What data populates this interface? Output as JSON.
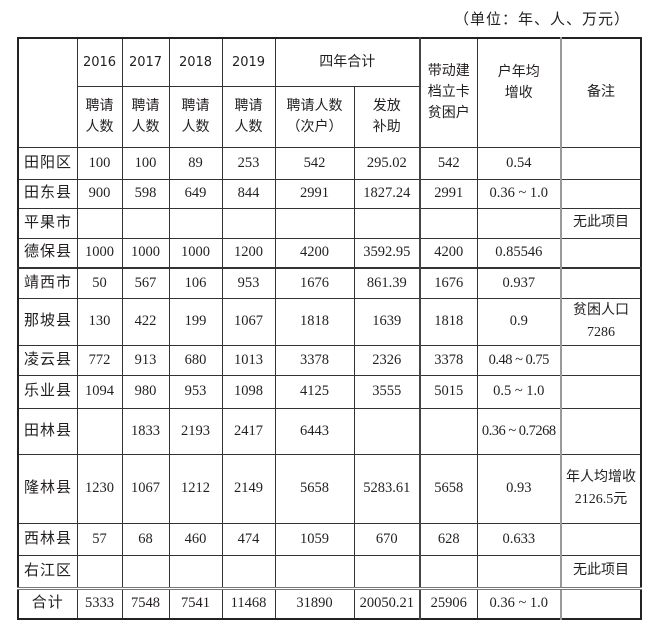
{
  "unit_note": "（单位：年、人、万元）",
  "header": {
    "years": [
      "2016",
      "2017",
      "2018",
      "2019"
    ],
    "four_year_total": "四年合计",
    "hired": "聘请人数",
    "hired_total": "聘请人数（次户）",
    "subsidy": "发放补助",
    "poor_households": "带动建档立卡贫困户",
    "avg_income": "户年均增收",
    "remarks": "备注"
  },
  "rows": [
    {
      "name": "田阳区",
      "y2016": "100",
      "y2017": "100",
      "y2018": "89",
      "y2019": "253",
      "total": "542",
      "subsidy": "295.02",
      "poor": "542",
      "income": "0.54",
      "note": ""
    },
    {
      "name": "田东县",
      "y2016": "900",
      "y2017": "598",
      "y2018": "649",
      "y2019": "844",
      "total": "2991",
      "subsidy": "1827.24",
      "poor": "2991",
      "income": "0.36 ~ 1.0",
      "note": ""
    },
    {
      "name": "平果市",
      "y2016": "",
      "y2017": "",
      "y2018": "",
      "y2019": "",
      "total": "",
      "subsidy": "",
      "poor": "",
      "income": "",
      "note": "无此项目"
    },
    {
      "name": "德保县",
      "y2016": "1000",
      "y2017": "1000",
      "y2018": "1000",
      "y2019": "1200",
      "total": "4200",
      "subsidy": "3592.95",
      "poor": "4200",
      "income": "0.85546",
      "note": ""
    },
    {
      "name": "靖西市",
      "y2016": "50",
      "y2017": "567",
      "y2018": "106",
      "y2019": "953",
      "total": "1676",
      "subsidy": "861.39",
      "poor": "1676",
      "income": "0.937",
      "note": ""
    },
    {
      "name": "那坡县",
      "y2016": "130",
      "y2017": "422",
      "y2018": "199",
      "y2019": "1067",
      "total": "1818",
      "subsidy": "1639",
      "poor": "1818",
      "income": "0.9",
      "note": "贫困人口7286"
    },
    {
      "name": "凌云县",
      "y2016": "772",
      "y2017": "913",
      "y2018": "680",
      "y2019": "1013",
      "total": "3378",
      "subsidy": "2326",
      "poor": "3378",
      "income": "0.48 ~ 0.75",
      "note": ""
    },
    {
      "name": "乐业县",
      "y2016": "1094",
      "y2017": "980",
      "y2018": "953",
      "y2019": "1098",
      "total": "4125",
      "subsidy": "3555",
      "poor": "5015",
      "income": "0.5 ~ 1.0",
      "note": ""
    },
    {
      "name": "田林县",
      "y2016": "",
      "y2017": "1833",
      "y2018": "2193",
      "y2019": "2417",
      "total": "6443",
      "subsidy": "",
      "poor": "",
      "income": "0.36 ~ 0.7268",
      "note": ""
    },
    {
      "name": "隆林县",
      "y2016": "1230",
      "y2017": "1067",
      "y2018": "1212",
      "y2019": "2149",
      "total": "5658",
      "subsidy": "5283.61",
      "poor": "5658",
      "income": "0.93",
      "note": "年人均增收2126.5元"
    },
    {
      "name": "西林县",
      "y2016": "57",
      "y2017": "68",
      "y2018": "460",
      "y2019": "474",
      "total": "1059",
      "subsidy": "670",
      "poor": "628",
      "income": "0.633",
      "note": ""
    },
    {
      "name": "右江区",
      "y2016": "",
      "y2017": "",
      "y2018": "",
      "y2019": "",
      "total": "",
      "subsidy": "",
      "poor": "",
      "income": "",
      "note": "无此项目"
    },
    {
      "name": "合计",
      "y2016": "5333",
      "y2017": "7548",
      "y2018": "7541",
      "y2019": "11468",
      "total": "31890",
      "subsidy": "20050.21",
      "poor": "25906",
      "income": "0.36 ~ 1.0",
      "note": ""
    }
  ]
}
